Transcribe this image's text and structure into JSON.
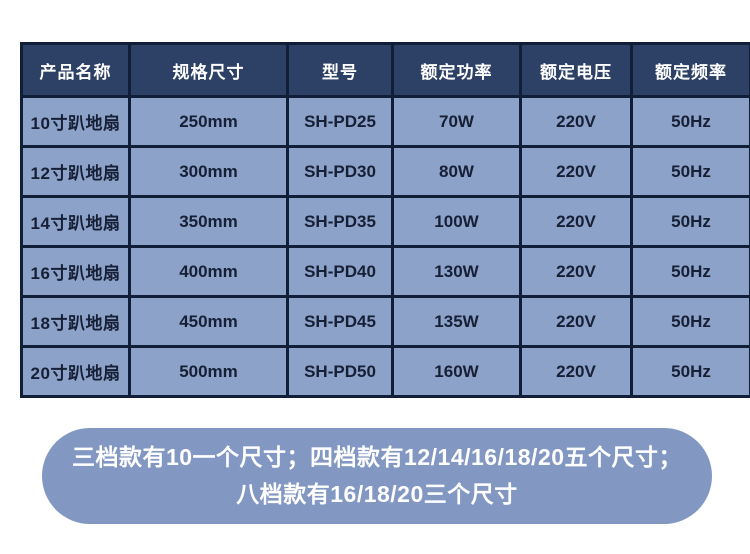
{
  "table": {
    "headers": [
      "产品名称",
      "规格尺寸",
      "型号",
      "额定功率",
      "额定电压",
      "额定频率"
    ],
    "rows": [
      [
        "10寸趴地扇",
        "250mm",
        "SH-PD25",
        "70W",
        "220V",
        "50Hz"
      ],
      [
        "12寸趴地扇",
        "300mm",
        "SH-PD30",
        "80W",
        "220V",
        "50Hz"
      ],
      [
        "14寸趴地扇",
        "350mm",
        "SH-PD35",
        "100W",
        "220V",
        "50Hz"
      ],
      [
        "16寸趴地扇",
        "400mm",
        "SH-PD40",
        "130W",
        "220V",
        "50Hz"
      ],
      [
        "18寸趴地扇",
        "450mm",
        "SH-PD45",
        "135W",
        "220V",
        "50Hz"
      ],
      [
        "20寸趴地扇",
        "500mm",
        "SH-PD50",
        "160W",
        "220V",
        "50Hz"
      ]
    ]
  },
  "note": {
    "line1": "三档款有10一个尺寸；四档款有12/14/16/18/20五个尺寸；",
    "line2": "八档款有16/18/20三个尺寸"
  },
  "colors": {
    "header_bg": "#2d4066",
    "header_text": "#ffffff",
    "cell_bg": "#8ca2c8",
    "cell_text": "#161f36",
    "border": "#111e38",
    "note_bg": "#8297c2",
    "note_text": "#ffffff",
    "page_bg": "#ffffff"
  }
}
